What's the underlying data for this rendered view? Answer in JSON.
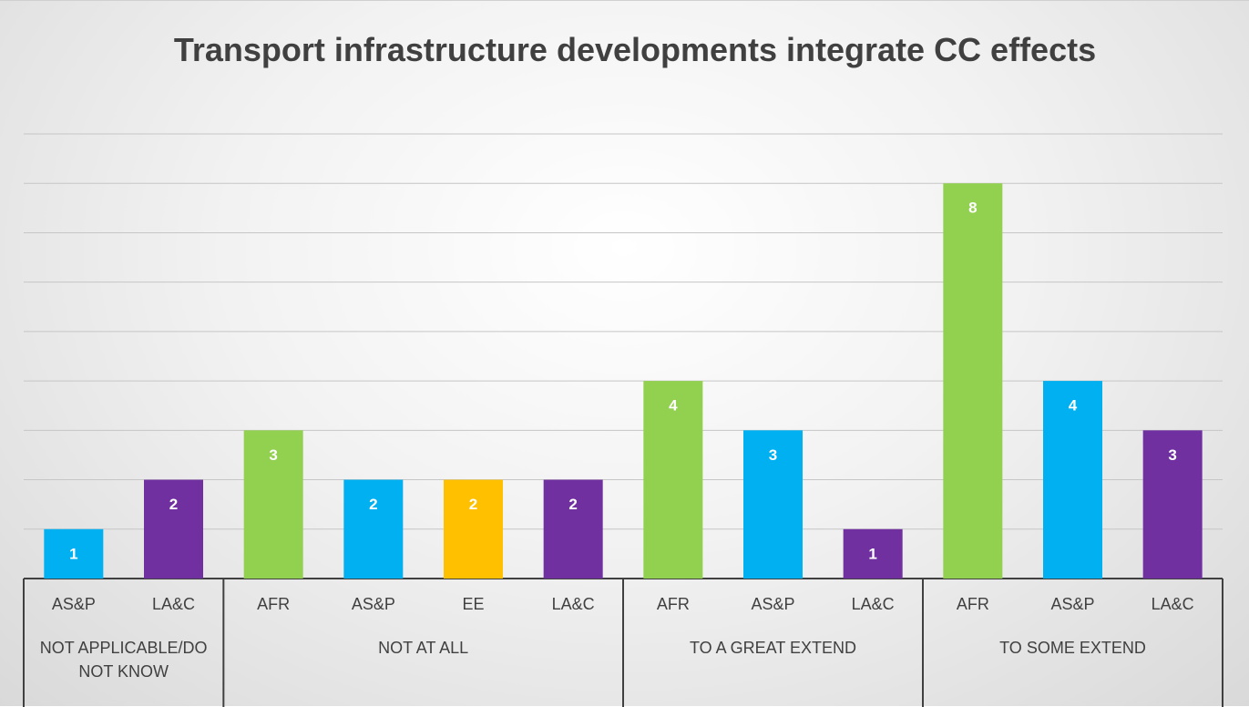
{
  "chart_data": {
    "type": "bar",
    "title": "Transport infrastructure developments integrate CC effects",
    "groups": [
      {
        "name": "NOT APPLICABLE/DO NOT KNOW",
        "categories": [
          "AS&P",
          "LA&C"
        ],
        "values": [
          1,
          2
        ],
        "colors": [
          "#00b0f0",
          "#7030a0"
        ]
      },
      {
        "name": "NOT AT ALL",
        "categories": [
          "AFR",
          "AS&P",
          "EE",
          "LA&C"
        ],
        "values": [
          3,
          2,
          2,
          2
        ],
        "colors": [
          "#92d050",
          "#00b0f0",
          "#ffc000",
          "#7030a0"
        ]
      },
      {
        "name": "TO A GREAT EXTEND",
        "categories": [
          "AFR",
          "AS&P",
          "LA&C"
        ],
        "values": [
          4,
          3,
          1
        ],
        "colors": [
          "#92d050",
          "#00b0f0",
          "#7030a0"
        ]
      },
      {
        "name": "TO SOME EXTEND",
        "categories": [
          "AFR",
          "AS&P",
          "LA&C"
        ],
        "values": [
          8,
          4,
          3
        ],
        "colors": [
          "#92d050",
          "#00b0f0",
          "#7030a0"
        ]
      }
    ],
    "ylim": [
      0,
      9
    ],
    "yticks": [
      0,
      1,
      2,
      3,
      4,
      5,
      6,
      7,
      8,
      9
    ],
    "grid": true
  }
}
